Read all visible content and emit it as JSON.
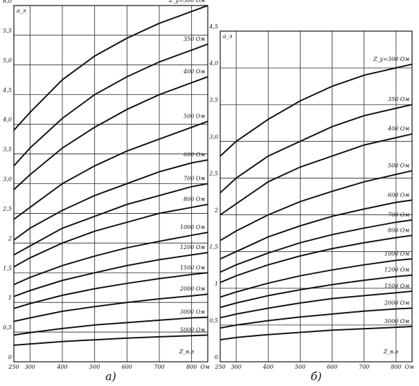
{
  "chart_data": [
    {
      "type": "line",
      "panel_label": "а)",
      "y_label": "a_э",
      "x_label": "Z_в.э",
      "x_unit": "Ом",
      "x": [
        250,
        300,
        400,
        500,
        600,
        700,
        800,
        850
      ],
      "xlim": [
        250,
        850
      ],
      "xticks": [
        250,
        300,
        400,
        500,
        600,
        700,
        800
      ],
      "ylim": [
        0,
        6
      ],
      "yticks": [
        0,
        {
          "value": 0.5,
          "label": "0,5"
        },
        1,
        {
          "value": 1.5,
          "label": "1,5"
        },
        2,
        {
          "value": 2.5,
          "label": "2,5"
        },
        {
          "value": 3,
          "label": "3,0"
        },
        {
          "value": 3.5,
          "label": "3,5"
        },
        {
          "value": 4,
          "label": "4,0"
        },
        {
          "value": 4.5,
          "label": "4,5"
        },
        {
          "value": 5,
          "label": "5,0"
        },
        {
          "value": 5.5,
          "label": "5,5"
        },
        {
          "value": 6,
          "label": "6,0"
        }
      ],
      "grid": true,
      "series": [
        {
          "name": "Z_у=300 Ом",
          "color": "#111",
          "values": [
            3.9,
            4.2,
            4.75,
            5.15,
            5.45,
            5.7,
            5.9,
            6.0
          ]
        },
        {
          "name": "350 Ом",
          "color": "#111",
          "values": [
            3.3,
            3.6,
            4.1,
            4.5,
            4.8,
            5.05,
            5.25,
            5.35
          ]
        },
        {
          "name": "400 Ом",
          "color": "#111",
          "values": [
            2.9,
            3.15,
            3.6,
            3.95,
            4.25,
            4.5,
            4.7,
            4.8
          ]
        },
        {
          "name": "500 Ом",
          "color": "#111",
          "values": [
            2.4,
            2.6,
            3.0,
            3.3,
            3.55,
            3.75,
            3.95,
            4.05
          ]
        },
        {
          "name": "600 Ом",
          "color": "#111",
          "values": [
            2.05,
            2.25,
            2.55,
            2.8,
            3.0,
            3.2,
            3.35,
            3.4
          ]
        },
        {
          "name": "700 Ом",
          "color": "#111",
          "values": [
            1.8,
            1.95,
            2.25,
            2.45,
            2.65,
            2.8,
            2.95,
            3.0
          ]
        },
        {
          "name": "800 Ом",
          "color": "#111",
          "values": [
            1.6,
            1.75,
            2.0,
            2.2,
            2.35,
            2.5,
            2.6,
            2.65
          ]
        },
        {
          "name": "1000 Ом",
          "color": "#111",
          "values": [
            1.3,
            1.42,
            1.62,
            1.78,
            1.92,
            2.03,
            2.13,
            2.18
          ]
        },
        {
          "name": "1200 Ом",
          "color": "#111",
          "values": [
            1.1,
            1.2,
            1.37,
            1.5,
            1.62,
            1.72,
            1.8,
            1.84
          ]
        },
        {
          "name": "1500 Ом",
          "color": "#111",
          "values": [
            0.9,
            0.98,
            1.12,
            1.23,
            1.32,
            1.4,
            1.47,
            1.5
          ]
        },
        {
          "name": "2000 Ом",
          "color": "#111",
          "values": [
            0.68,
            0.74,
            0.85,
            0.93,
            1.0,
            1.06,
            1.11,
            1.14
          ]
        },
        {
          "name": "3000 Ом",
          "color": "#111",
          "values": [
            0.45,
            0.49,
            0.56,
            0.62,
            0.66,
            0.7,
            0.74,
            0.75
          ]
        },
        {
          "name": "5000 Ом",
          "color": "#111",
          "values": [
            0.28,
            0.3,
            0.34,
            0.37,
            0.4,
            0.42,
            0.44,
            0.45
          ]
        }
      ]
    },
    {
      "type": "line",
      "panel_label": "б)",
      "y_label": "a_э",
      "x_label": "Z_в.э",
      "x_unit": "Ом",
      "x": [
        250,
        300,
        400,
        500,
        600,
        700,
        800,
        850
      ],
      "xlim": [
        250,
        850
      ],
      "xticks": [
        250,
        300,
        400,
        500,
        600,
        700,
        800
      ],
      "ylim": [
        0,
        4.5
      ],
      "yticks": [
        0,
        {
          "value": 0.5,
          "label": "0,5"
        },
        1,
        {
          "value": 1.5,
          "label": "1,5"
        },
        2,
        {
          "value": 2.5,
          "label": "2,5"
        },
        {
          "value": 3,
          "label": "3,0"
        },
        {
          "value": 3.5,
          "label": "3,5"
        },
        {
          "value": 4,
          "label": "4,0"
        },
        {
          "value": 4.5,
          "label": "4,5"
        }
      ],
      "grid": true,
      "series": [
        {
          "name": "Z_у=300 Ом",
          "color": "#111",
          "values": [
            2.8,
            3.0,
            3.3,
            3.55,
            3.75,
            3.9,
            4.0,
            4.05
          ]
        },
        {
          "name": "350 Ом",
          "color": "#111",
          "values": [
            2.3,
            2.5,
            2.8,
            3.0,
            3.2,
            3.35,
            3.45,
            3.5
          ]
        },
        {
          "name": "400 Ом",
          "color": "#111",
          "values": [
            2.0,
            2.15,
            2.45,
            2.65,
            2.8,
            2.95,
            3.05,
            3.1
          ]
        },
        {
          "name": "500 Ом",
          "color": "#111",
          "values": [
            1.65,
            1.78,
            2.0,
            2.18,
            2.32,
            2.45,
            2.55,
            2.6
          ]
        },
        {
          "name": "600 Ом",
          "color": "#111",
          "values": [
            1.4,
            1.5,
            1.7,
            1.85,
            1.98,
            2.08,
            2.17,
            2.2
          ]
        },
        {
          "name": "700 Ом",
          "color": "#111",
          "values": [
            1.22,
            1.32,
            1.48,
            1.62,
            1.73,
            1.82,
            1.9,
            1.93
          ]
        },
        {
          "name": "800 Ом",
          "color": "#111",
          "values": [
            1.08,
            1.17,
            1.32,
            1.44,
            1.54,
            1.62,
            1.69,
            1.72
          ]
        },
        {
          "name": "1000 Ом",
          "color": "#111",
          "values": [
            0.88,
            0.95,
            1.07,
            1.17,
            1.25,
            1.32,
            1.38,
            1.4
          ]
        },
        {
          "name": "1200 Ом",
          "color": "#111",
          "values": [
            0.74,
            0.8,
            0.9,
            0.98,
            1.05,
            1.11,
            1.16,
            1.18
          ]
        },
        {
          "name": "1500 Ом",
          "color": "#111",
          "values": [
            0.6,
            0.65,
            0.73,
            0.8,
            0.86,
            0.9,
            0.94,
            0.96
          ]
        },
        {
          "name": "2000 Ом",
          "color": "#111",
          "values": [
            0.46,
            0.5,
            0.56,
            0.61,
            0.65,
            0.69,
            0.72,
            0.73
          ]
        },
        {
          "name": "3000 Ом",
          "color": "#111",
          "values": [
            0.3,
            0.33,
            0.37,
            0.4,
            0.43,
            0.45,
            0.47,
            0.48
          ]
        }
      ]
    }
  ]
}
